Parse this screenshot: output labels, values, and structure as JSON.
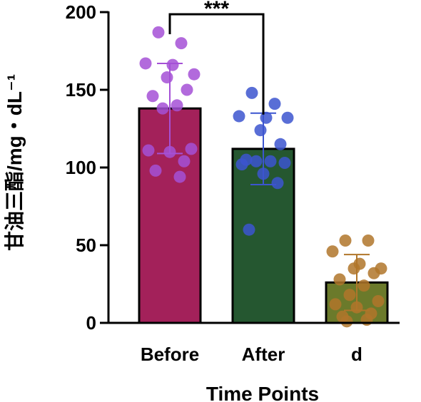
{
  "chart_data": {
    "type": "bar",
    "xlabel": "Time Points",
    "ylabel": "甘油三酯/mg・dL⁻¹",
    "ylim": [
      0,
      200
    ],
    "yticks": [
      0,
      50,
      100,
      150,
      200
    ],
    "categories": [
      "Before",
      "After",
      "d"
    ],
    "series": [
      {
        "values": [
          138,
          112,
          26
        ],
        "error": [
          29,
          23,
          18
        ],
        "bar_colors": [
          "#a3215a",
          "#255730",
          "#6b7a2b"
        ],
        "point_colors": [
          "#a550d6",
          "#3c55cf",
          "#b0762a"
        ],
        "points": [
          [
            187,
            180,
            167,
            166,
            160,
            158,
            150,
            146,
            140,
            138,
            112,
            111,
            110,
            104,
            98,
            94
          ],
          [
            148,
            141,
            133,
            132,
            132,
            124,
            115,
            105,
            104,
            104,
            103,
            102,
            96,
            90,
            60
          ],
          [
            53,
            53,
            46,
            38,
            35,
            35,
            32,
            28,
            24,
            18,
            14,
            12,
            10,
            6,
            4,
            2,
            1
          ]
        ]
      }
    ],
    "significance": [
      {
        "from": 0,
        "to": 1,
        "label": "***"
      }
    ]
  }
}
